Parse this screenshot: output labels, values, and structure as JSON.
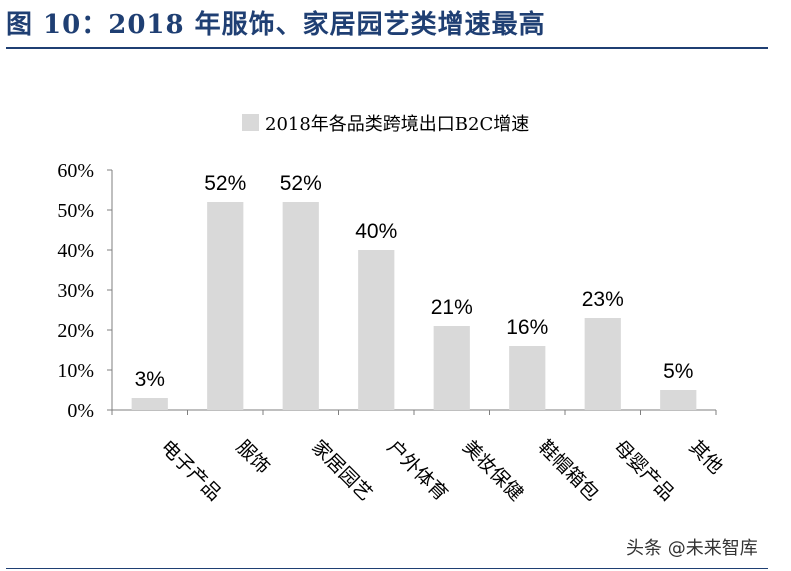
{
  "header": {
    "figure_title": "图 10：2018 年服饰、家居园艺类增速最高"
  },
  "watermark": "头条 @未来智库",
  "colors": {
    "title": "#1f3f73",
    "bar": "#d9d9d9",
    "axis": "#7f7f7f"
  },
  "chart_data": {
    "type": "bar",
    "legend": "2018年各品类跨境出口B2C增速",
    "categories": [
      "电子产品",
      "服饰",
      "家居园艺",
      "户外体育",
      "美妆保健",
      "鞋帽箱包",
      "母婴产品",
      "其他"
    ],
    "values": [
      3,
      52,
      52,
      40,
      21,
      16,
      23,
      5
    ],
    "value_labels": [
      "3%",
      "52%",
      "52%",
      "40%",
      "21%",
      "16%",
      "23%",
      "5%"
    ],
    "yticks": [
      "0%",
      "10%",
      "20%",
      "30%",
      "40%",
      "50%",
      "60%"
    ],
    "ytick_values": [
      0,
      10,
      20,
      30,
      40,
      50,
      60
    ],
    "ylim": [
      0,
      60
    ],
    "xlabel": "",
    "ylabel": "",
    "legend_position": "top-center",
    "grid": false
  }
}
